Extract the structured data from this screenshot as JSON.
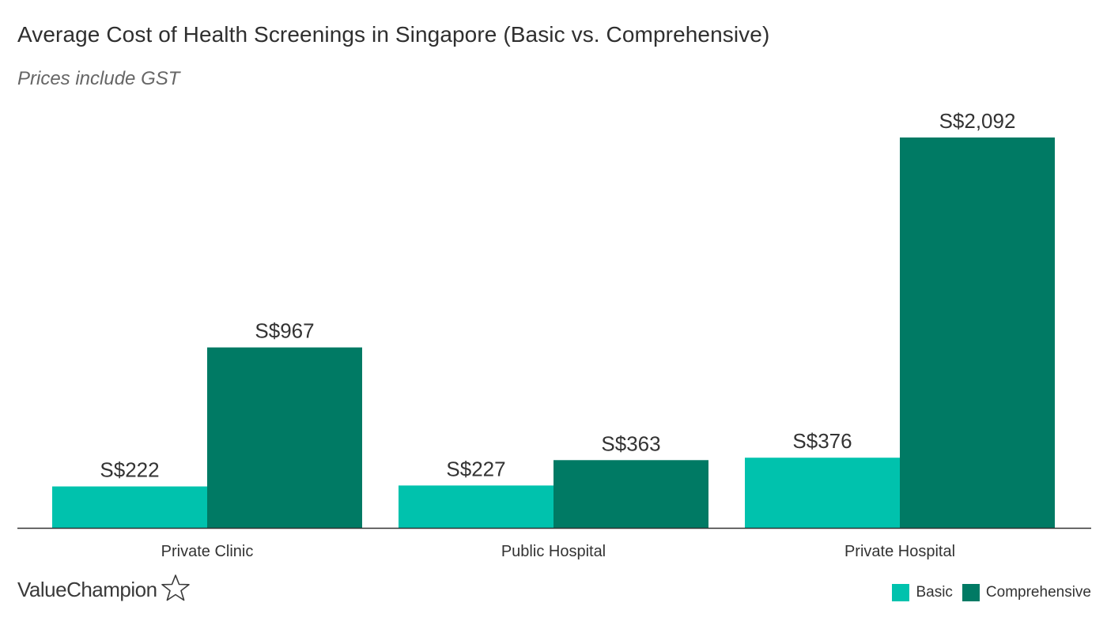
{
  "chart_data": {
    "type": "bar",
    "title": "Average Cost of Health Screenings in Singapore (Basic vs. Comprehensive)",
    "subtitle": "Prices include GST",
    "categories": [
      "Private Clinic",
      "Public Hospital",
      "Private Hospital"
    ],
    "series": [
      {
        "name": "Basic",
        "color": "#00c2ad",
        "values": [
          222,
          227,
          376
        ],
        "labels": [
          "S$222",
          "S$227",
          "S$376"
        ]
      },
      {
        "name": "Comprehensive",
        "color": "#007a64",
        "values": [
          967,
          363,
          2092
        ],
        "labels": [
          "S$967",
          "S$363",
          "S$2,092"
        ]
      }
    ],
    "ylim": [
      0,
      2092
    ],
    "xlabel": "",
    "ylabel": "",
    "grid": false,
    "legend_position": "bottom-right"
  },
  "brand": {
    "name": "ValueChampion",
    "icon": "star-outline-icon"
  }
}
